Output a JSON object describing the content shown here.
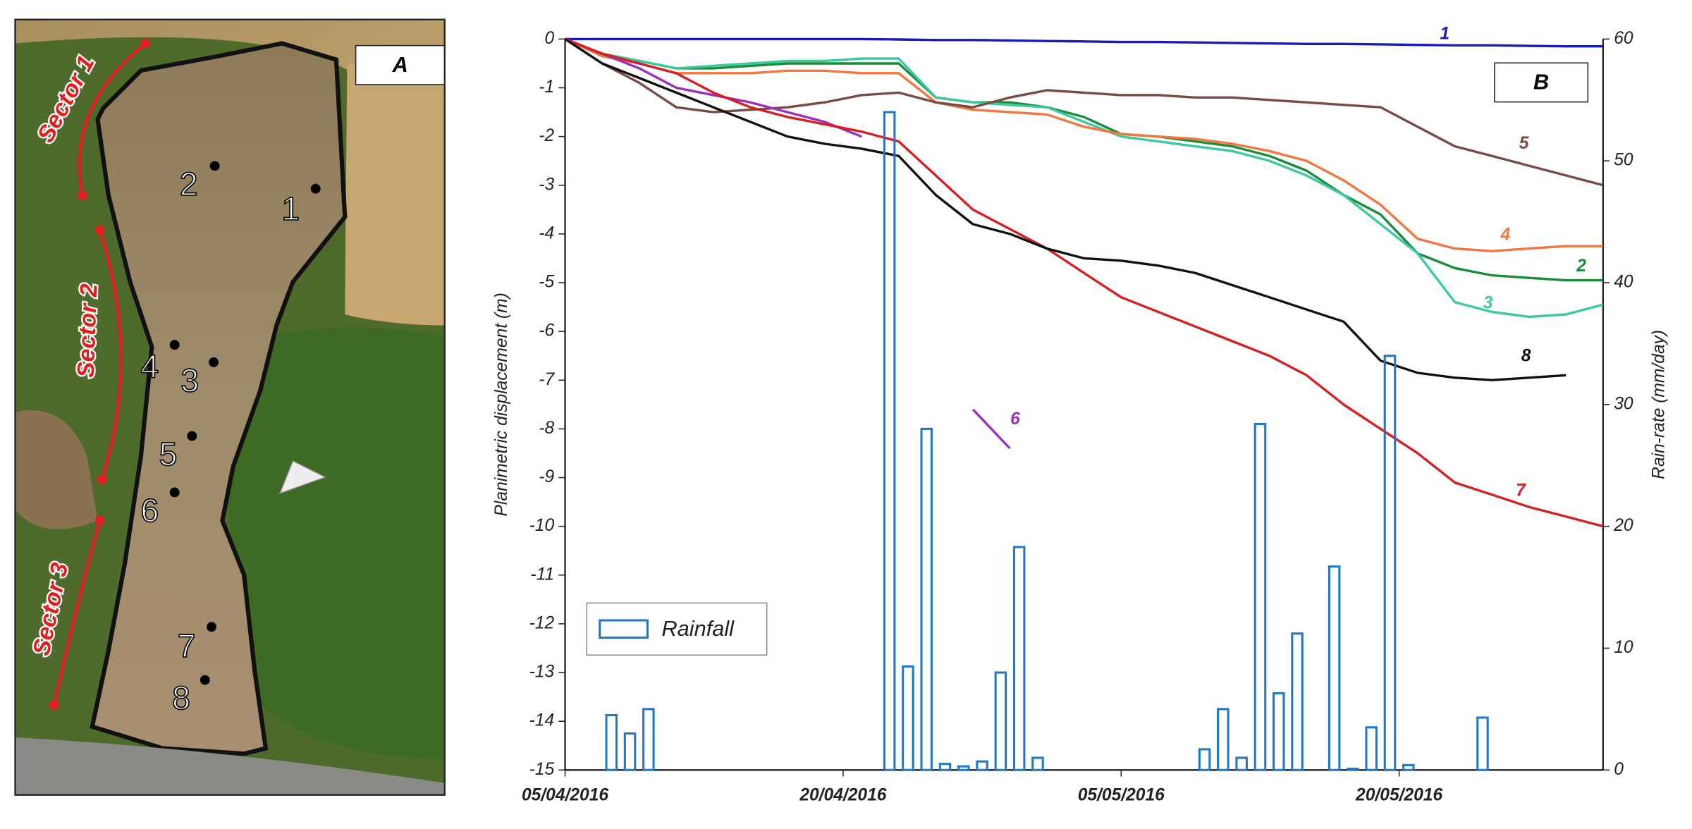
{
  "panel_a": {
    "label": "A",
    "sectors": [
      "Sector 1",
      "Sector 2",
      "Sector 3"
    ],
    "points": [
      "1",
      "2",
      "3",
      "4",
      "5",
      "6",
      "7",
      "8"
    ]
  },
  "chart_data": {
    "type": "line",
    "panel_label": "B",
    "ylabel": "Planimetric displacement (m)",
    "y2label": "Rain-rate (mm/day)",
    "xlim": [
      "2016-04-05",
      "2016-05-31"
    ],
    "xticks": [
      {
        "value": "2016-04-05",
        "label": "05/04/2016"
      },
      {
        "value": "2016-04-20",
        "label": "20/04/2016"
      },
      {
        "value": "2016-05-05",
        "label": "05/05/2016"
      },
      {
        "value": "2016-05-20",
        "label": "20/05/2016"
      }
    ],
    "ylim": [
      -15,
      0
    ],
    "yticks": [
      -15,
      -14,
      -13,
      -12,
      -11,
      -10,
      -9,
      -8,
      -7,
      -6,
      -5,
      -4,
      -3,
      -2,
      -1,
      0
    ],
    "y2lim": [
      0,
      60
    ],
    "y2ticks": [
      0,
      10,
      20,
      30,
      40,
      50,
      60
    ],
    "x": [
      "2016-04-05",
      "2016-04-07",
      "2016-04-09",
      "2016-04-11",
      "2016-04-13",
      "2016-04-15",
      "2016-04-17",
      "2016-04-19",
      "2016-04-21",
      "2016-04-23",
      "2016-04-25",
      "2016-04-27",
      "2016-04-29",
      "2016-05-01",
      "2016-05-03",
      "2016-05-05",
      "2016-05-07",
      "2016-05-09",
      "2016-05-11",
      "2016-05-13",
      "2016-05-15",
      "2016-05-17",
      "2016-05-19",
      "2016-05-21",
      "2016-05-23",
      "2016-05-25",
      "2016-05-27",
      "2016-05-29",
      "2016-05-31"
    ],
    "series": [
      {
        "name": "1",
        "color": "#1a1ab4",
        "values": [
          0,
          0,
          0,
          0,
          0,
          0,
          0,
          0,
          0,
          -0.01,
          -0.02,
          -0.02,
          -0.03,
          -0.04,
          -0.05,
          -0.06,
          -0.06,
          -0.07,
          -0.08,
          -0.09,
          -0.1,
          -0.1,
          -0.11,
          -0.12,
          -0.13,
          -0.13,
          -0.14,
          -0.15,
          -0.15
        ]
      },
      {
        "name": "2",
        "color": "#1a8c3a",
        "values": [
          0,
          -0.3,
          -0.45,
          -0.6,
          -0.6,
          -0.55,
          -0.5,
          -0.5,
          -0.5,
          -0.5,
          -1.2,
          -1.3,
          -1.3,
          -1.4,
          -1.6,
          -1.95,
          -2.0,
          -2.1,
          -2.2,
          -2.4,
          -2.7,
          -3.2,
          -3.6,
          -4.4,
          -4.7,
          -4.85,
          -4.9,
          -4.95,
          -4.95
        ]
      },
      {
        "name": "3",
        "color": "#3cc8a0",
        "values": [
          0,
          -0.3,
          -0.45,
          -0.6,
          -0.55,
          -0.5,
          -0.45,
          -0.45,
          -0.4,
          -0.4,
          -1.2,
          -1.3,
          -1.35,
          -1.4,
          -1.7,
          -2.0,
          -2.1,
          -2.2,
          -2.3,
          -2.5,
          -2.8,
          -3.2,
          -3.8,
          -4.4,
          -5.4,
          -5.6,
          -5.7,
          -5.65,
          -5.45
        ]
      },
      {
        "name": "4",
        "color": "#f07840",
        "values": [
          0,
          -0.35,
          -0.5,
          -0.7,
          -0.7,
          -0.7,
          -0.65,
          -0.65,
          -0.7,
          -0.7,
          -1.3,
          -1.45,
          -1.5,
          -1.55,
          -1.8,
          -1.95,
          -2.0,
          -2.05,
          -2.15,
          -2.3,
          -2.5,
          -2.9,
          -3.4,
          -4.1,
          -4.3,
          -4.35,
          -4.3,
          -4.25,
          -4.25
        ]
      },
      {
        "name": "5",
        "color": "#7a4a44",
        "values": [
          0,
          -0.5,
          -0.9,
          -1.4,
          -1.5,
          -1.45,
          -1.4,
          -1.3,
          -1.15,
          -1.1,
          -1.3,
          -1.4,
          -1.2,
          -1.05,
          -1.1,
          -1.15,
          -1.15,
          -1.2,
          -1.2,
          -1.25,
          -1.3,
          -1.35,
          -1.4,
          -1.8,
          -2.2,
          -2.4,
          -2.6,
          -2.8,
          -3.0
        ]
      },
      {
        "name": "6",
        "color": "#9a30c0",
        "values": [
          0,
          -0.3,
          -0.6,
          -1.0,
          -1.15,
          -1.3,
          -1.5,
          -1.7,
          -2.0,
          null,
          null,
          -7.6,
          -8.4,
          null,
          null,
          null,
          null,
          null,
          null,
          null,
          null,
          null,
          null,
          null,
          null,
          null,
          null,
          null,
          null
        ]
      },
      {
        "name": "7",
        "color": "#d42020",
        "values": [
          0,
          -0.3,
          -0.5,
          -0.7,
          -1.1,
          -1.4,
          -1.6,
          -1.75,
          -1.9,
          -2.1,
          -2.8,
          -3.5,
          -3.9,
          -4.3,
          -4.8,
          -5.3,
          -5.6,
          -5.9,
          -6.2,
          -6.5,
          -6.9,
          -7.5,
          -8.0,
          -8.5,
          -9.1,
          -9.35,
          -9.6,
          -9.8,
          -10.0
        ]
      },
      {
        "name": "8",
        "color": "#111111",
        "values": [
          0,
          -0.5,
          -0.8,
          -1.1,
          -1.4,
          -1.7,
          -2.0,
          -2.15,
          -2.25,
          -2.4,
          -3.2,
          -3.8,
          -4.0,
          -4.3,
          -4.5,
          -4.55,
          -4.65,
          -4.8,
          -5.05,
          -5.3,
          -5.55,
          -5.8,
          -6.6,
          -6.85,
          -6.95,
          -7.0,
          -6.95,
          -6.9,
          null
        ]
      },
      {
        "name": "Rainfall",
        "type": "bar",
        "axis": "y2",
        "color": "#1f78c8",
        "x": [
          "2016-04-07",
          "2016-04-08",
          "2016-04-09",
          "2016-04-22",
          "2016-04-23",
          "2016-04-24",
          "2016-04-25",
          "2016-04-26",
          "2016-04-27",
          "2016-04-28",
          "2016-04-29",
          "2016-04-30",
          "2016-05-09",
          "2016-05-10",
          "2016-05-11",
          "2016-05-12",
          "2016-05-13",
          "2016-05-14",
          "2016-05-16",
          "2016-05-17",
          "2016-05-18",
          "2016-05-19",
          "2016-05-20",
          "2016-05-24"
        ],
        "values": [
          4.5,
          3.0,
          5.0,
          54,
          8.5,
          28,
          0.5,
          0.3,
          0.7,
          8,
          18.3,
          1.0,
          1.7,
          5,
          1.0,
          28.4,
          6.3,
          11.2,
          16.7,
          0.1,
          3.5,
          34,
          0.4,
          4.3
        ]
      }
    ]
  }
}
